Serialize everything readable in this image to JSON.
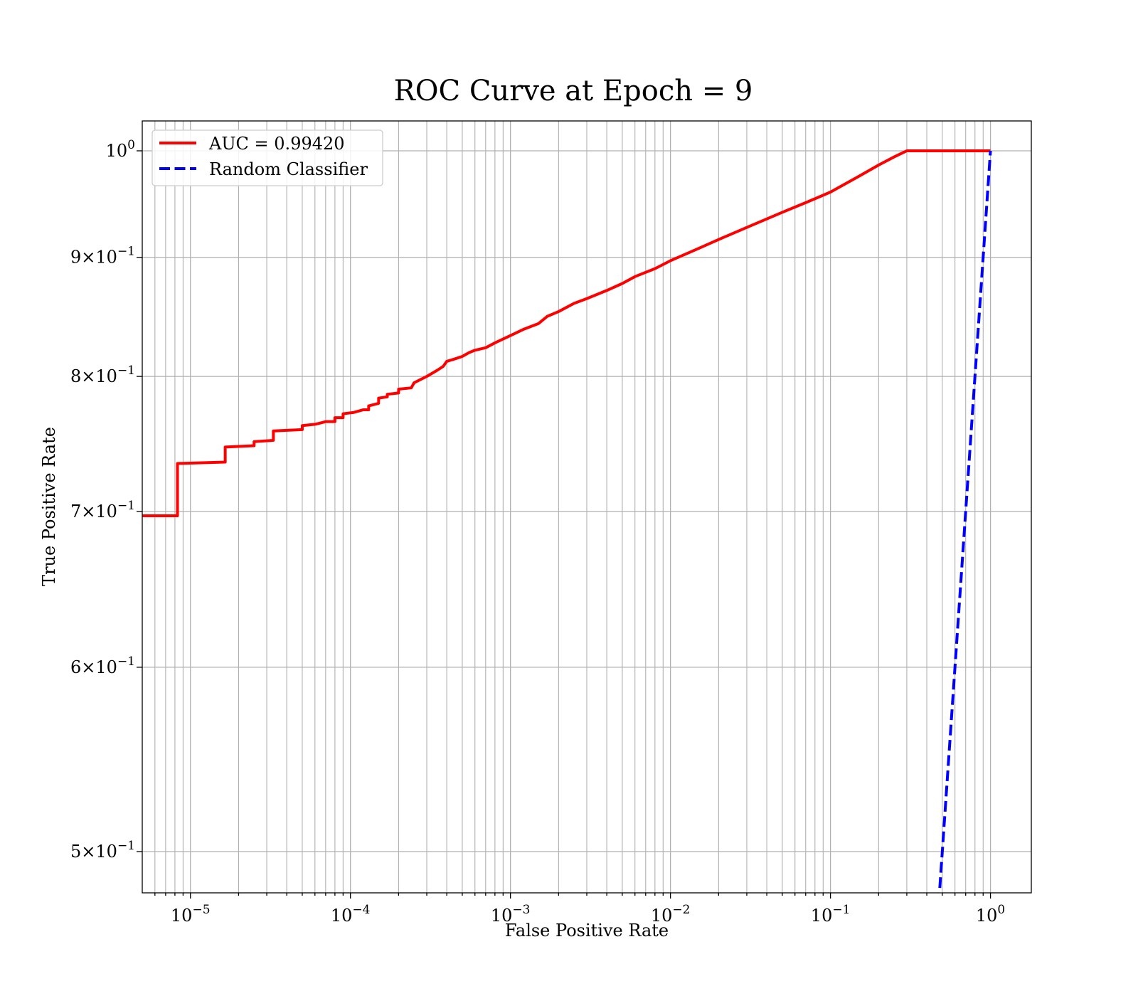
{
  "chart_data": {
    "type": "line",
    "title": "ROC Curve at Epoch = 9",
    "xlabel": "False Positive Rate",
    "ylabel": "True Positive Rate",
    "xscale": "log",
    "yscale": "log",
    "xlim": [
      5e-06,
      1.8
    ],
    "ylim": [
      0.48,
      1.03
    ],
    "grid": "major and minor",
    "legend_position": "top-left",
    "x_ticks": [
      {
        "value": 1e-05,
        "base": "10",
        "exp": "−5"
      },
      {
        "value": 0.0001,
        "base": "10",
        "exp": "−4"
      },
      {
        "value": 0.001,
        "base": "10",
        "exp": "−3"
      },
      {
        "value": 0.01,
        "base": "10",
        "exp": "−2"
      },
      {
        "value": 0.1,
        "base": "10",
        "exp": "−1"
      },
      {
        "value": 1,
        "base": "10",
        "exp": "0"
      }
    ],
    "y_ticks": [
      {
        "value": 1.0,
        "base": "10",
        "exp": "0"
      },
      {
        "value": 0.9,
        "base": "9×10",
        "exp": "−1"
      },
      {
        "value": 0.8,
        "base": "8×10",
        "exp": "−1"
      },
      {
        "value": 0.7,
        "base": "7×10",
        "exp": "−1"
      },
      {
        "value": 0.6,
        "base": "6×10",
        "exp": "−1"
      },
      {
        "value": 0.5,
        "base": "5×10",
        "exp": "−1"
      }
    ],
    "series": [
      {
        "name": "AUC = 0.99420",
        "color": "#ff0000",
        "style": "solid",
        "points": [
          [
            5e-06,
            0.697
          ],
          [
            8.3e-06,
            0.697
          ],
          [
            8.3e-06,
            0.734
          ],
          [
            1.65e-05,
            0.735
          ],
          [
            1.65e-05,
            0.746
          ],
          [
            2.5e-05,
            0.747
          ],
          [
            2.5e-05,
            0.75
          ],
          [
            3.3e-05,
            0.751
          ],
          [
            3.3e-05,
            0.758
          ],
          [
            5e-05,
            0.759
          ],
          [
            5e-05,
            0.762
          ],
          [
            6e-05,
            0.763
          ],
          [
            6.5e-05,
            0.764
          ],
          [
            7e-05,
            0.765
          ],
          [
            8e-05,
            0.765
          ],
          [
            8e-05,
            0.768
          ],
          [
            9e-05,
            0.768
          ],
          [
            9e-05,
            0.771
          ],
          [
            0.000105,
            0.772
          ],
          [
            0.00012,
            0.774
          ],
          [
            0.00013,
            0.774
          ],
          [
            0.00013,
            0.777
          ],
          [
            0.00015,
            0.779
          ],
          [
            0.00015,
            0.783
          ],
          [
            0.00017,
            0.784
          ],
          [
            0.00017,
            0.786
          ],
          [
            0.0002,
            0.787
          ],
          [
            0.0002,
            0.79
          ],
          [
            0.00024,
            0.791
          ],
          [
            0.00025,
            0.795
          ],
          [
            0.0003,
            0.8
          ],
          [
            0.00035,
            0.805
          ],
          [
            0.00038,
            0.808
          ],
          [
            0.0004,
            0.812
          ],
          [
            0.00045,
            0.814
          ],
          [
            0.0005,
            0.816
          ],
          [
            0.00055,
            0.819
          ],
          [
            0.0006,
            0.821
          ],
          [
            0.0007,
            0.823
          ],
          [
            0.0008,
            0.827
          ],
          [
            0.001,
            0.833
          ],
          [
            0.0012,
            0.838
          ],
          [
            0.0015,
            0.843
          ],
          [
            0.0017,
            0.849
          ],
          [
            0.002,
            0.853
          ],
          [
            0.0025,
            0.86
          ],
          [
            0.003,
            0.864
          ],
          [
            0.004,
            0.871
          ],
          [
            0.005,
            0.877
          ],
          [
            0.006,
            0.883
          ],
          [
            0.008,
            0.89
          ],
          [
            0.01,
            0.897
          ],
          [
            0.015,
            0.908
          ],
          [
            0.02,
            0.916
          ],
          [
            0.03,
            0.927
          ],
          [
            0.05,
            0.941
          ],
          [
            0.07,
            0.95
          ],
          [
            0.1,
            0.96
          ],
          [
            0.15,
            0.975
          ],
          [
            0.2,
            0.986
          ],
          [
            0.25,
            0.994
          ],
          [
            0.3,
            1.0
          ],
          [
            1.0,
            1.0
          ]
        ]
      },
      {
        "name": "Random Classifier",
        "color": "#0000ff",
        "style": "dashed",
        "points": [
          [
            0.468,
            0.468
          ],
          [
            1.0,
            1.0
          ]
        ]
      }
    ]
  }
}
